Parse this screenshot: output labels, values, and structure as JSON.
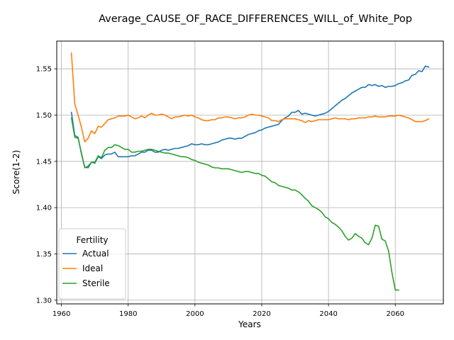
{
  "chart_data": {
    "type": "line",
    "title": "Average_CAUSE_OF_RACE_DIFFERENCES_WILL_of_White_Pop",
    "xlabel": "Years",
    "ylabel": "Score(1-2)",
    "xlim": [
      1958.6,
      2074.4
    ],
    "ylim": [
      1.296,
      1.58
    ],
    "x_ticks": [
      1960,
      1980,
      2000,
      2020,
      2040,
      2060
    ],
    "y_ticks": [
      1.3,
      1.35,
      1.4,
      1.45,
      1.5,
      1.55
    ],
    "x_tick_labels": [
      "1960",
      "1980",
      "2000",
      "2020",
      "2040",
      "2060"
    ],
    "y_tick_labels": [
      "1.30",
      "1.35",
      "1.40",
      "1.45",
      "1.50",
      "1.55"
    ],
    "grid": true,
    "legend": {
      "title": "Fertility",
      "placement": "lower left"
    },
    "series": [
      {
        "name": "Actual",
        "color": "#1f77b4",
        "x": [
          1963,
          1964,
          1965,
          1966,
          1967,
          1968,
          1969,
          1970,
          1971,
          1972,
          1973,
          1974,
          1975,
          1976,
          1977,
          1978,
          1979,
          1980,
          1981,
          1982,
          1983,
          1984,
          1985,
          1986,
          1987,
          1988,
          1989,
          1990,
          1991,
          1992,
          1993,
          1994,
          1995,
          1996,
          1997,
          1998,
          1999,
          2000,
          2001,
          2002,
          2003,
          2004,
          2005,
          2006,
          2007,
          2008,
          2009,
          2010,
          2011,
          2012,
          2013,
          2014,
          2015,
          2016,
          2017,
          2018,
          2019,
          2020,
          2021,
          2022,
          2023,
          2024,
          2025,
          2026,
          2027,
          2028,
          2029,
          2030,
          2031,
          2032,
          2033,
          2034,
          2035,
          2036,
          2037,
          2038,
          2039,
          2040,
          2041,
          2042,
          2043,
          2044,
          2045,
          2046,
          2047,
          2048,
          2049,
          2050,
          2051,
          2052,
          2053,
          2054,
          2055,
          2056,
          2057,
          2058,
          2059,
          2060,
          2061,
          2062,
          2063,
          2064,
          2065,
          2066,
          2067,
          2068,
          2069,
          2070
        ],
        "values": [
          1.503,
          1.478,
          1.476,
          1.458,
          1.444,
          1.443,
          1.449,
          1.448,
          1.455,
          1.453,
          1.457,
          1.458,
          1.458,
          1.46,
          1.455,
          1.455,
          1.455,
          1.455,
          1.456,
          1.456,
          1.458,
          1.46,
          1.46,
          1.462,
          1.462,
          1.46,
          1.46,
          1.462,
          1.463,
          1.462,
          1.463,
          1.464,
          1.464,
          1.465,
          1.466,
          1.467,
          1.469,
          1.468,
          1.468,
          1.469,
          1.468,
          1.468,
          1.469,
          1.47,
          1.471,
          1.473,
          1.474,
          1.475,
          1.475,
          1.474,
          1.475,
          1.475,
          1.477,
          1.479,
          1.48,
          1.481,
          1.483,
          1.484,
          1.486,
          1.487,
          1.488,
          1.489,
          1.49,
          1.494,
          1.497,
          1.499,
          1.503,
          1.503,
          1.505,
          1.501,
          1.502,
          1.501,
          1.5,
          1.499,
          1.5,
          1.501,
          1.502,
          1.504,
          1.507,
          1.51,
          1.513,
          1.516,
          1.518,
          1.521,
          1.524,
          1.526,
          1.528,
          1.53,
          1.53,
          1.533,
          1.532,
          1.533,
          1.531,
          1.532,
          1.53,
          1.531,
          1.531,
          1.532,
          1.534,
          1.535,
          1.537,
          1.538,
          1.543,
          1.544,
          1.548,
          1.547,
          1.553,
          1.552
        ]
      },
      {
        "name": "Ideal",
        "color": "#ff7f0e",
        "x": [
          1963,
          1964,
          1965,
          1966,
          1967,
          1968,
          1969,
          1970,
          1971,
          1972,
          1973,
          1974,
          1975,
          1976,
          1977,
          1978,
          1979,
          1980,
          1981,
          1982,
          1983,
          1984,
          1985,
          1986,
          1987,
          1988,
          1989,
          1990,
          1991,
          1992,
          1993,
          1994,
          1995,
          1996,
          1997,
          1998,
          1999,
          2000,
          2001,
          2002,
          2003,
          2004,
          2005,
          2006,
          2007,
          2008,
          2009,
          2010,
          2011,
          2012,
          2013,
          2014,
          2015,
          2016,
          2017,
          2018,
          2019,
          2020,
          2021,
          2022,
          2023,
          2024,
          2025,
          2026,
          2027,
          2028,
          2029,
          2030,
          2031,
          2032,
          2033,
          2034,
          2035,
          2036,
          2037,
          2038,
          2039,
          2040,
          2041,
          2042,
          2043,
          2044,
          2045,
          2046,
          2047,
          2048,
          2049,
          2050,
          2051,
          2052,
          2053,
          2054,
          2055,
          2056,
          2057,
          2058,
          2059,
          2060,
          2061,
          2062,
          2063,
          2064,
          2065,
          2066,
          2067,
          2068,
          2069,
          2070
        ],
        "values": [
          1.567,
          1.512,
          1.5,
          1.487,
          1.471,
          1.475,
          1.483,
          1.48,
          1.488,
          1.487,
          1.491,
          1.495,
          1.496,
          1.497,
          1.499,
          1.499,
          1.499,
          1.5,
          1.498,
          1.496,
          1.497,
          1.499,
          1.497,
          1.5,
          1.502,
          1.5,
          1.5,
          1.501,
          1.5,
          1.498,
          1.496,
          1.498,
          1.498,
          1.499,
          1.5,
          1.499,
          1.5,
          1.498,
          1.497,
          1.495,
          1.494,
          1.494,
          1.495,
          1.495,
          1.497,
          1.497,
          1.498,
          1.498,
          1.497,
          1.496,
          1.497,
          1.497,
          1.498,
          1.5,
          1.501,
          1.5,
          1.5,
          1.499,
          1.498,
          1.497,
          1.494,
          1.494,
          1.493,
          1.495,
          1.496,
          1.496,
          1.496,
          1.496,
          1.495,
          1.494,
          1.492,
          1.494,
          1.493,
          1.494,
          1.495,
          1.495,
          1.495,
          1.495,
          1.496,
          1.497,
          1.496,
          1.496,
          1.496,
          1.495,
          1.496,
          1.496,
          1.497,
          1.497,
          1.497,
          1.498,
          1.498,
          1.499,
          1.498,
          1.498,
          1.498,
          1.499,
          1.499,
          1.499,
          1.5,
          1.499,
          1.498,
          1.497,
          1.495,
          1.493,
          1.493,
          1.493,
          1.494,
          1.496
        ]
      },
      {
        "name": "Sterile",
        "color": "#2ca02c",
        "x": [
          1963,
          1964,
          1965,
          1966,
          1967,
          1968,
          1969,
          1970,
          1971,
          1972,
          1973,
          1974,
          1975,
          1976,
          1977,
          1978,
          1979,
          1980,
          1981,
          1982,
          1983,
          1984,
          1985,
          1986,
          1987,
          1988,
          1989,
          1990,
          1991,
          1992,
          1993,
          1994,
          1995,
          1996,
          1997,
          1998,
          1999,
          2000,
          2001,
          2002,
          2003,
          2004,
          2005,
          2006,
          2007,
          2008,
          2009,
          2010,
          2011,
          2012,
          2013,
          2014,
          2015,
          2016,
          2017,
          2018,
          2019,
          2020,
          2021,
          2022,
          2023,
          2024,
          2025,
          2026,
          2027,
          2028,
          2029,
          2030,
          2031,
          2032,
          2033,
          2034,
          2035,
          2036,
          2037,
          2038,
          2039,
          2040,
          2041,
          2042,
          2043,
          2044,
          2045,
          2046,
          2047,
          2048,
          2049,
          2050,
          2051,
          2052,
          2053,
          2054,
          2055,
          2056,
          2057,
          2058,
          2059,
          2060,
          2061
        ],
        "values": [
          1.497,
          1.476,
          1.475,
          1.459,
          1.443,
          1.445,
          1.449,
          1.449,
          1.456,
          1.454,
          1.462,
          1.465,
          1.465,
          1.468,
          1.467,
          1.465,
          1.463,
          1.463,
          1.46,
          1.46,
          1.461,
          1.461,
          1.462,
          1.463,
          1.463,
          1.462,
          1.461,
          1.46,
          1.459,
          1.459,
          1.458,
          1.457,
          1.456,
          1.455,
          1.455,
          1.454,
          1.452,
          1.451,
          1.449,
          1.448,
          1.447,
          1.446,
          1.444,
          1.443,
          1.443,
          1.442,
          1.442,
          1.442,
          1.441,
          1.44,
          1.439,
          1.438,
          1.439,
          1.439,
          1.438,
          1.437,
          1.437,
          1.435,
          1.434,
          1.431,
          1.428,
          1.427,
          1.424,
          1.423,
          1.422,
          1.421,
          1.419,
          1.419,
          1.417,
          1.414,
          1.41,
          1.407,
          1.402,
          1.4,
          1.398,
          1.395,
          1.39,
          1.388,
          1.384,
          1.382,
          1.379,
          1.375,
          1.369,
          1.365,
          1.367,
          1.372,
          1.369,
          1.367,
          1.362,
          1.36,
          1.367,
          1.381,
          1.38,
          1.366,
          1.364,
          1.353,
          1.33,
          1.311,
          1.311
        ]
      }
    ]
  }
}
